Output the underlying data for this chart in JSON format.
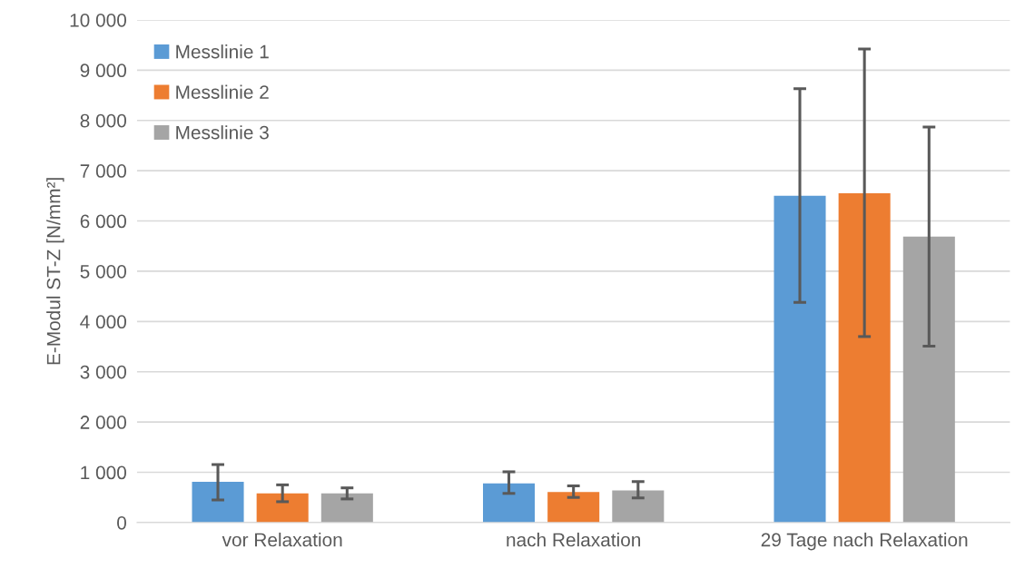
{
  "chart_data": {
    "type": "bar",
    "ylabel": "E-Modul ST-Z [N/mm²]",
    "categories": [
      "vor Relaxation",
      "nach Relaxation",
      "29 Tage nach Relaxation"
    ],
    "series": [
      {
        "name": "Messlinie 1",
        "color": "#5b9bd5",
        "values": [
          810,
          780,
          6500
        ],
        "errors": [
          [
            450,
            1155
          ],
          [
            580,
            1010
          ],
          [
            4380,
            8630
          ]
        ]
      },
      {
        "name": "Messlinie 2",
        "color": "#ed7d31",
        "values": [
          580,
          610,
          6550
        ],
        "errors": [
          [
            415,
            750
          ],
          [
            500,
            730
          ],
          [
            3700,
            9420
          ]
        ]
      },
      {
        "name": "Messlinie 3",
        "color": "#a5a5a5",
        "values": [
          580,
          640,
          5690
        ],
        "errors": [
          [
            470,
            690
          ],
          [
            490,
            815
          ],
          [
            3510,
            7870
          ]
        ]
      }
    ],
    "ylim": [
      0,
      10000
    ],
    "yticks": [
      0,
      {
        "value": 1000,
        "label": "1 000"
      },
      {
        "value": 2000,
        "label": "2 000"
      },
      {
        "value": 3000,
        "label": "3 000"
      },
      {
        "value": 4000,
        "label": "4 000"
      },
      {
        "value": 5000,
        "label": "5 000"
      },
      {
        "value": 6000,
        "label": "6 000"
      },
      {
        "value": 7000,
        "label": "7 000"
      },
      {
        "value": 8000,
        "label": "8 000"
      },
      {
        "value": 9000,
        "label": "9 000"
      },
      {
        "value": 10000,
        "label": "10 000"
      }
    ],
    "grid": "y",
    "legend": "top left"
  }
}
